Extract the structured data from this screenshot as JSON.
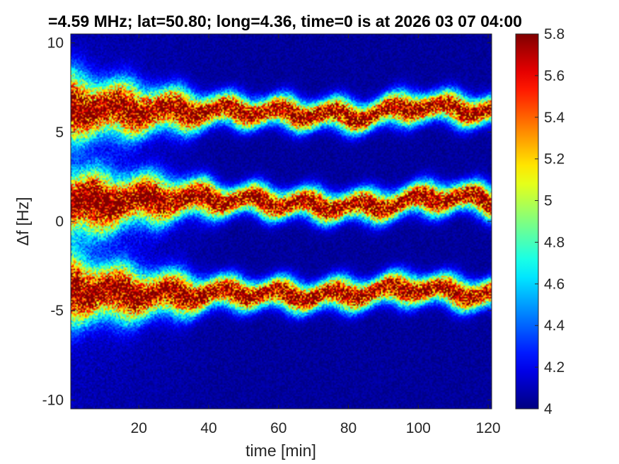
{
  "chart_data": {
    "type": "heatmap",
    "title": "=4.59 MHz;  lat=50.80; long=4.36, time=0 is at 2026 03 07 04:00",
    "xlabel": "time [min]",
    "ylabel": "Δf [Hz]",
    "xlim": [
      0.5,
      121
    ],
    "ylim": [
      -10.5,
      10.5
    ],
    "x_ticks": [
      20,
      40,
      60,
      80,
      100,
      120
    ],
    "x_tick_labels": [
      "20",
      "40",
      "60",
      "80",
      "100",
      "120"
    ],
    "y_ticks": [
      -10,
      -5,
      0,
      5,
      10
    ],
    "y_tick_labels": [
      "-10",
      "-5",
      "0",
      "5",
      "10"
    ],
    "grid": false,
    "colormap": "jet",
    "colorbar": {
      "range": [
        4,
        5.8
      ],
      "ticks": [
        4,
        4.2,
        4.4,
        4.6,
        4.8,
        5,
        5.2,
        5.4,
        5.6,
        5.8
      ],
      "tick_labels": [
        "4",
        "4.2",
        "4.4",
        "4.6",
        "4.8",
        "5",
        "5.2",
        "5.4",
        "5.6",
        "5.8"
      ]
    },
    "bands": [
      {
        "center_time_min": [
          1,
          10,
          30,
          50,
          70,
          85,
          100,
          110,
          121
        ],
        "center_freq_hz": [
          6.4,
          6.3,
          6.2,
          6.2,
          6.0,
          5.9,
          6.5,
          6.3,
          6.2
        ]
      },
      {
        "center_time_min": [
          1,
          10,
          30,
          50,
          70,
          85,
          100,
          110,
          121
        ],
        "center_freq_hz": [
          1.0,
          1.1,
          1.3,
          1.2,
          0.9,
          0.8,
          1.2,
          1.4,
          1.1
        ]
      },
      {
        "center_time_min": [
          1,
          10,
          30,
          50,
          70,
          85,
          100,
          110,
          121
        ],
        "center_freq_hz": [
          -3.8,
          -4.0,
          -4.1,
          -4.0,
          -4.2,
          -4.0,
          -3.7,
          -4.0,
          -4.1
        ]
      }
    ]
  }
}
